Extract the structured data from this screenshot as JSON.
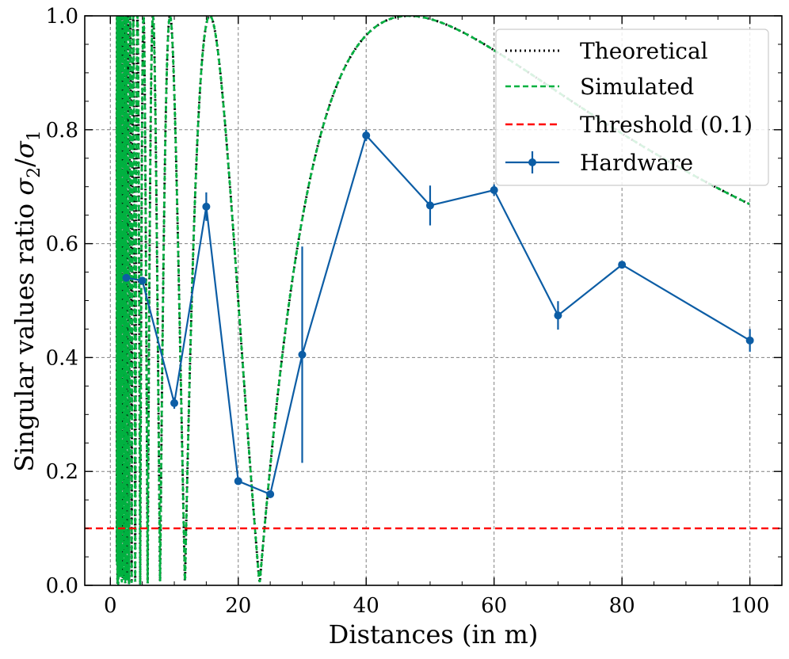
{
  "chart_data": {
    "type": "line",
    "xlabel": "Distances (in m)",
    "ylabel": {
      "text": "Singular values ratio ",
      "numerator_symbol": "σ",
      "numerator_sub": "2",
      "separator": "/",
      "denominator_symbol": "σ",
      "denominator_sub": "1"
    },
    "xlim": [
      -4,
      105
    ],
    "ylim": [
      0,
      1.0
    ],
    "xticks": [
      0,
      20,
      40,
      60,
      80,
      100
    ],
    "xtick_labels": [
      "0",
      "20",
      "40",
      "60",
      "80",
      "100"
    ],
    "yticks": [
      0.0,
      0.2,
      0.4,
      0.6,
      0.8,
      1.0
    ],
    "ytick_labels": [
      "0.0",
      "0.2",
      "0.4",
      "0.6",
      "0.8",
      "1.0"
    ],
    "grid": true,
    "legend_position": "top-right",
    "legend": [
      "Theoretical",
      "Simulated",
      "Threshold (0.1)",
      "Hardware"
    ],
    "series": [
      {
        "name": "Theoretical",
        "style": "dotted",
        "color": "#000000",
        "model": "|sin(k / d)|, folded sinusoid, k ≈ 73.3",
        "x_range": [
          1,
          100
        ]
      },
      {
        "name": "Simulated",
        "style": "dashed",
        "color": "#00b140",
        "model": "same curve as Theoretical",
        "x_range": [
          1,
          100
        ]
      },
      {
        "name": "Threshold (0.1)",
        "style": "dashed",
        "color": "#ff0000",
        "y": 0.1
      },
      {
        "name": "Hardware",
        "style": "solid with markers and error bars",
        "color": "#0c5da5",
        "x": [
          2.5,
          5,
          10,
          15,
          20,
          25,
          30,
          40,
          50,
          60,
          70,
          80,
          100
        ],
        "y": [
          0.54,
          0.535,
          0.32,
          0.665,
          0.183,
          0.16,
          0.405,
          0.79,
          0.667,
          0.694,
          0.474,
          0.563,
          0.43
        ],
        "yerr": [
          0.006,
          0.006,
          0.01,
          0.025,
          0.006,
          0.006,
          0.19,
          0.01,
          0.035,
          0.01,
          0.025,
          0.006,
          0.02
        ]
      }
    ]
  }
}
